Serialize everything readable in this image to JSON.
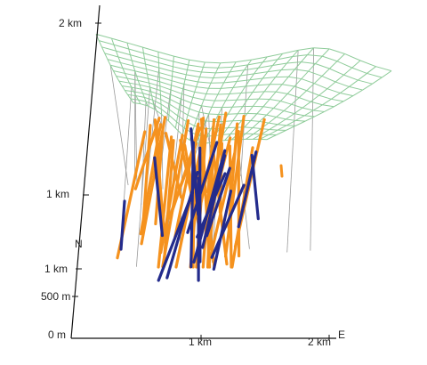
{
  "axes": {
    "vertical_ticks": [
      "2 km",
      "1 km"
    ],
    "north_label": "N",
    "north_ticks": [
      "1 km",
      "500 m",
      "0 m"
    ],
    "east_ticks": [
      "1 km",
      "2 km"
    ],
    "east_label": "E"
  },
  "colors": {
    "surface_mesh": "#8fcc9a",
    "drillhole_orange": "#f5921e",
    "drillhole_navy": "#232b8c",
    "collar_line": "#9a9a9a",
    "axis": "#111111"
  },
  "mesh": {
    "grid_rows": 14,
    "grid_cols": 20,
    "surface_type": "topographic-wireframe"
  },
  "drillholes": {
    "orange_count": 40,
    "navy_count": 16,
    "collar_line_count": 22
  }
}
